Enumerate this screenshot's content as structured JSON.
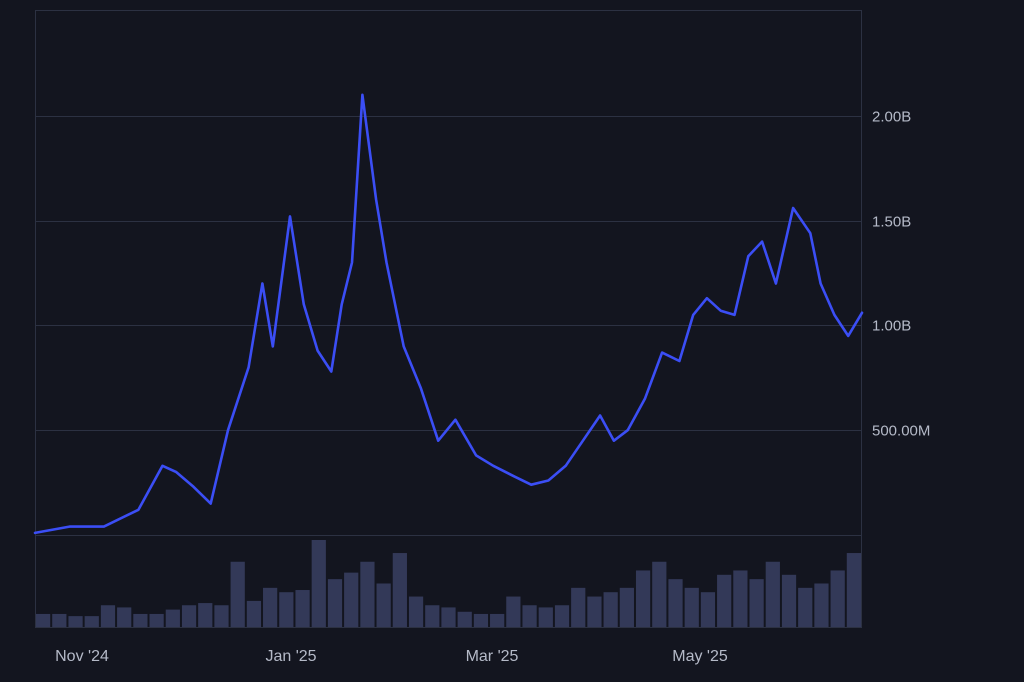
{
  "chart_data": {
    "type": "line",
    "title": "",
    "xlabel": "",
    "ylabel": "",
    "x_ticks": [
      "Nov '24",
      "Jan '25",
      "Mar '25",
      "May '25"
    ],
    "y_ticks": [
      {
        "value": 500000000,
        "label": "500.00M"
      },
      {
        "value": 1000000000,
        "label": "1.00B"
      },
      {
        "value": 1500000000,
        "label": "1.50B"
      },
      {
        "value": 2000000000,
        "label": "2.00B"
      }
    ],
    "ylim": [
      0,
      2500000000
    ],
    "grid": true,
    "legend": "none",
    "x_range": [
      "2024-10-25",
      "2025-06-22"
    ],
    "series": [
      {
        "color": "#3b4ef5",
        "x": [
          "2024-10-25",
          "2024-11-04",
          "2024-11-14",
          "2024-11-24",
          "2024-12-01",
          "2024-12-05",
          "2024-12-10",
          "2024-12-15",
          "2024-12-20",
          "2024-12-26",
          "2024-12-30",
          "2025-01-02",
          "2025-01-07",
          "2025-01-11",
          "2025-01-15",
          "2025-01-19",
          "2025-01-22",
          "2025-01-25",
          "2025-01-28",
          "2025-02-01",
          "2025-02-04",
          "2025-02-09",
          "2025-02-14",
          "2025-02-19",
          "2025-02-24",
          "2025-03-02",
          "2025-03-07",
          "2025-03-13",
          "2025-03-18",
          "2025-03-23",
          "2025-03-28",
          "2025-04-02",
          "2025-04-07",
          "2025-04-11",
          "2025-04-15",
          "2025-04-20",
          "2025-04-25",
          "2025-04-30",
          "2025-05-04",
          "2025-05-08",
          "2025-05-12",
          "2025-05-16",
          "2025-05-20",
          "2025-05-24",
          "2025-05-28",
          "2025-06-02",
          "2025-06-07",
          "2025-06-10",
          "2025-06-14",
          "2025-06-18",
          "2025-06-22"
        ],
        "y": [
          10000000,
          40000000,
          40000000,
          120000000,
          330000000,
          300000000,
          230000000,
          150000000,
          500000000,
          800000000,
          1200000000,
          900000000,
          1520000000,
          1100000000,
          880000000,
          780000000,
          1100000000,
          1300000000,
          2100000000,
          1600000000,
          1300000000,
          900000000,
          700000000,
          450000000,
          550000000,
          380000000,
          330000000,
          280000000,
          240000000,
          260000000,
          330000000,
          450000000,
          570000000,
          450000000,
          500000000,
          650000000,
          870000000,
          830000000,
          1050000000,
          1130000000,
          1070000000,
          1050000000,
          1330000000,
          1400000000,
          1200000000,
          1560000000,
          1440000000,
          1200000000,
          1050000000,
          950000000,
          1060000000
        ]
      }
    ],
    "volume_values": [
      6,
      6,
      5,
      5,
      10,
      9,
      6,
      6,
      8,
      10,
      11,
      10,
      30,
      12,
      18,
      16,
      17,
      40,
      22,
      25,
      30,
      20,
      34,
      14,
      10,
      9,
      7,
      6,
      6,
      14,
      10,
      9,
      10,
      18,
      14,
      16,
      18,
      26,
      30,
      22,
      18,
      16,
      24,
      26,
      22,
      30,
      24,
      18,
      20,
      26,
      34
    ]
  }
}
